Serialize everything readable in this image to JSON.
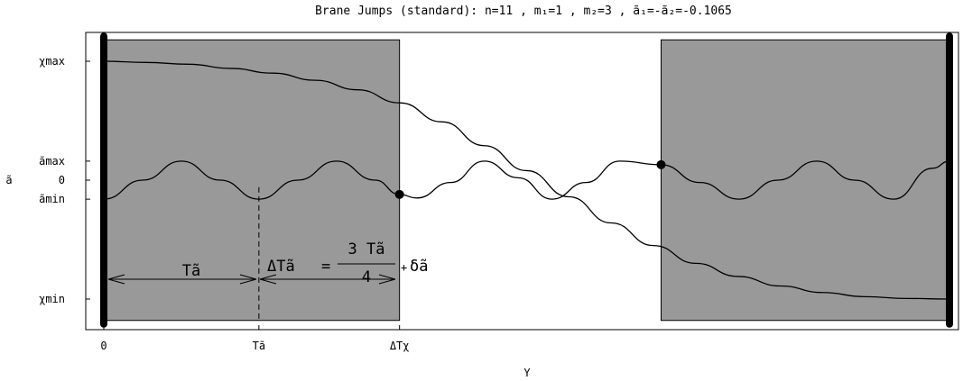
{
  "chart_data": {
    "type": "line",
    "title": "Brane Jumps (standard): n=11 , m₁=1 , m₂=3 , ã₁=-ã₂=-0.1065",
    "xlabel": "Y",
    "ylabel": "ã",
    "xlim": [
      0,
      1
    ],
    "ylim": [
      -1.25,
      1.2
    ],
    "x_ticks": [
      {
        "value": 0,
        "label": "0"
      },
      {
        "value": 0.1834,
        "label": "Tã"
      },
      {
        "value": 0.3497,
        "label": "ΔTχ"
      }
    ],
    "y_ticks": [
      {
        "value": 1.0,
        "label": "χmax"
      },
      {
        "value": 0.16,
        "label": "ãmax"
      },
      {
        "value": 0,
        "label": "0"
      },
      {
        "value": -0.16,
        "label": "ãmin"
      },
      {
        "value": -1.0,
        "label": "χmin"
      }
    ],
    "shaded_regions": [
      {
        "x": [
          0,
          0.3497
        ],
        "y": [
          -1.18,
          1.18
        ],
        "color": "#999999"
      },
      {
        "x": [
          0.659,
          1.0
        ],
        "y": [
          -1.18,
          1.18
        ],
        "color": "#999999"
      }
    ],
    "branes": [
      0,
      1.0
    ],
    "series": [
      {
        "x": [
          0,
          0.05,
          0.1,
          0.15,
          0.2,
          0.25,
          0.3,
          0.35,
          0.4,
          0.45,
          0.5,
          0.55,
          0.6,
          0.65,
          0.7,
          0.75,
          0.8,
          0.85,
          0.9,
          0.95,
          1.0
        ],
        "y": [
          1.0,
          0.99,
          0.975,
          0.94,
          0.9,
          0.84,
          0.76,
          0.65,
          0.49,
          0.29,
          0.08,
          -0.14,
          -0.36,
          -0.55,
          -0.7,
          -0.81,
          -0.89,
          -0.945,
          -0.98,
          -0.995,
          -1.0
        ]
      },
      {
        "x": [
          0,
          0.0459,
          0.0917,
          0.1376,
          0.1834,
          0.2293,
          0.2751,
          0.321,
          0.3497,
          0.37,
          0.41,
          0.45,
          0.49,
          0.53,
          0.57,
          0.61,
          0.659,
          0.705,
          0.751,
          0.797,
          0.843,
          0.888,
          0.934,
          0.98,
          1.0
        ],
        "y": [
          -0.16,
          -0.0,
          0.16,
          0.0,
          -0.16,
          0.0,
          0.16,
          0.0,
          -0.12,
          -0.15,
          -0.02,
          0.16,
          0.02,
          -0.16,
          -0.02,
          0.16,
          0.13,
          -0.02,
          -0.16,
          0.0,
          0.16,
          0.0,
          -0.16,
          0.1,
          0.16
        ]
      }
    ],
    "markers": [
      {
        "x": 0.3497,
        "y": -0.12
      },
      {
        "x": 0.659,
        "y": 0.13
      }
    ],
    "period_marker": {
      "x": 0.1834,
      "y_range": [
        -1.18,
        -0.06
      ]
    },
    "annotations": {
      "period_label": "Tã",
      "jump_label_left": "ΔTã",
      "jump_num": "3 Tã",
      "jump_den": "4",
      "jump_plus": "+",
      "jump_delta": "δã",
      "eq": "="
    }
  }
}
